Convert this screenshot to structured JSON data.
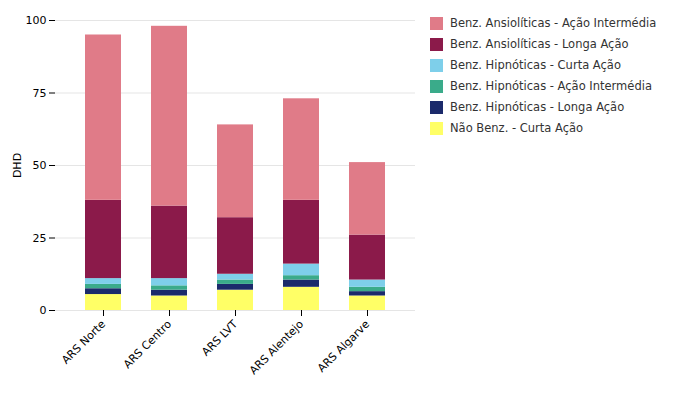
{
  "chart_data": {
    "type": "bar",
    "stacked": true,
    "categories": [
      "ARS Norte",
      "ARS Centro",
      "ARS LVT",
      "ARS Alentejo",
      "ARS Algarve"
    ],
    "series": [
      {
        "name": "Não Benz. - Curta Ação",
        "color": "#FFFF66",
        "values": [
          5.5,
          5.0,
          7.0,
          8.0,
          5.0
        ]
      },
      {
        "name": "Benz. Hipnóticas - Longa Ação",
        "color": "#1b2a6b",
        "values": [
          2.0,
          2.0,
          2.0,
          2.5,
          1.5
        ]
      },
      {
        "name": "Benz. Hipnóticas - Ação Intermédia",
        "color": "#3aab8a",
        "values": [
          1.5,
          1.5,
          1.5,
          1.5,
          1.5
        ]
      },
      {
        "name": "Benz. Hipnóticas - Curta Ação",
        "color": "#7ecfea",
        "values": [
          2.0,
          2.5,
          2.0,
          4.0,
          2.5
        ]
      },
      {
        "name": "Benz. Ansiolíticas - Longa Ação",
        "color": "#8b1a4a",
        "values": [
          27.0,
          25.0,
          19.5,
          22.0,
          15.5
        ]
      },
      {
        "name": "Benz. Ansiolíticas - Ação Intermédia",
        "color": "#e07b88",
        "values": [
          57.0,
          62.0,
          32.0,
          35.0,
          25.0
        ]
      }
    ],
    "ylabel": "DHD",
    "ylim": [
      0,
      100
    ],
    "yticks": [
      0,
      25,
      50,
      75,
      100
    ],
    "grid": true,
    "legend": "right"
  }
}
